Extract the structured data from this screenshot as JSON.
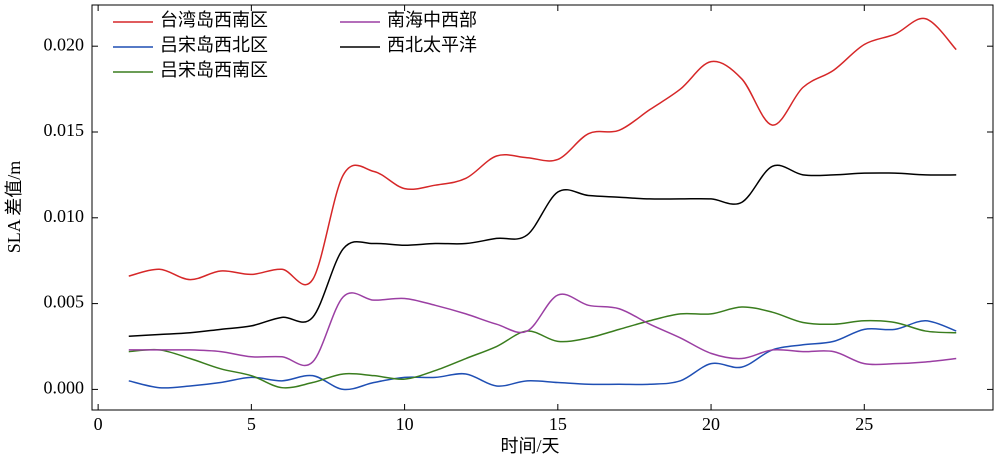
{
  "chart_data": {
    "type": "line",
    "xlabel": "时间/天",
    "ylabel": "SLA 差值/m",
    "x": [
      1,
      2,
      3,
      4,
      5,
      6,
      7,
      8,
      9,
      10,
      11,
      12,
      13,
      14,
      15,
      16,
      17,
      18,
      19,
      20,
      21,
      22,
      23,
      24,
      25,
      26,
      27,
      28
    ],
    "xlim": [
      -0.2,
      29.2
    ],
    "xticks": [
      0,
      5,
      10,
      15,
      20,
      25
    ],
    "ylim": [
      -0.0012,
      0.0224
    ],
    "yticks": [
      {
        "value": 0,
        "label": "0.000"
      },
      {
        "value": 0.005,
        "label": "0.005"
      },
      {
        "value": 0.01,
        "label": "0.010"
      },
      {
        "value": 0.015,
        "label": "0.015"
      },
      {
        "value": 0.02,
        "label": "0.020"
      }
    ],
    "legend": "upper left",
    "series": [
      {
        "name": "台湾岛西南区",
        "color": "#d62728",
        "values": [
          0.0066,
          0.007,
          0.0064,
          0.0069,
          0.0067,
          0.007,
          0.0064,
          0.0125,
          0.0127,
          0.0117,
          0.0119,
          0.0123,
          0.0136,
          0.0135,
          0.0134,
          0.0149,
          0.0151,
          0.0163,
          0.0175,
          0.0191,
          0.0181,
          0.0154,
          0.0176,
          0.0186,
          0.0201,
          0.0207,
          0.0216,
          0.0198
        ]
      },
      {
        "name": "吕宋岛西北区",
        "color": "#1f4fb4",
        "values": [
          0.0005,
          0.0001,
          0.0002,
          0.0004,
          0.0007,
          0.0005,
          0.0008,
          0.0,
          0.0004,
          0.0007,
          0.0007,
          0.0009,
          0.0002,
          0.0005,
          0.0004,
          0.0003,
          0.0003,
          0.0003,
          0.0005,
          0.0015,
          0.0013,
          0.0023,
          0.0026,
          0.0028,
          0.0035,
          0.0035,
          0.004,
          0.0034
        ]
      },
      {
        "name": "吕宋岛西南区",
        "color": "#3a7d1e",
        "values": [
          0.0022,
          0.0023,
          0.0018,
          0.0012,
          0.0008,
          0.0001,
          0.0004,
          0.0009,
          0.0008,
          0.0006,
          0.0011,
          0.0018,
          0.0025,
          0.0034,
          0.0028,
          0.003,
          0.0035,
          0.004,
          0.0044,
          0.0044,
          0.0048,
          0.0045,
          0.0039,
          0.0038,
          0.004,
          0.0039,
          0.0034,
          0.0033
        ]
      },
      {
        "name": "南海中西部",
        "color": "#9b3fa3",
        "values": [
          0.0023,
          0.0023,
          0.0023,
          0.0022,
          0.0019,
          0.0019,
          0.0016,
          0.0054,
          0.0052,
          0.0053,
          0.0049,
          0.0044,
          0.0038,
          0.0034,
          0.0055,
          0.0049,
          0.0047,
          0.0038,
          0.003,
          0.0021,
          0.0018,
          0.0023,
          0.0022,
          0.0022,
          0.0015,
          0.0015,
          0.0016,
          0.0018
        ]
      },
      {
        "name": "西北太平洋",
        "color": "#000000",
        "values": [
          0.0031,
          0.0032,
          0.0033,
          0.0035,
          0.0037,
          0.0042,
          0.0042,
          0.0082,
          0.0085,
          0.0084,
          0.0085,
          0.0085,
          0.0088,
          0.009,
          0.0115,
          0.0113,
          0.0112,
          0.0111,
          0.0111,
          0.0111,
          0.0109,
          0.013,
          0.0125,
          0.0125,
          0.0126,
          0.0126,
          0.0125,
          0.0125
        ]
      }
    ]
  }
}
